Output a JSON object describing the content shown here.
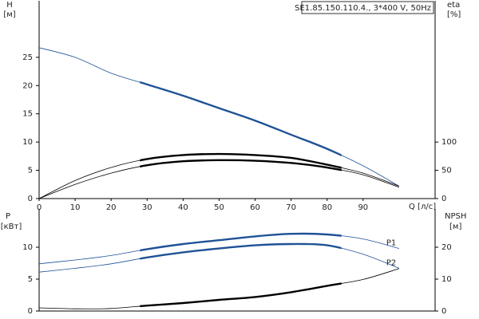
{
  "chart_data": [
    {
      "type": "line",
      "title": "SE1.85.150.110.4., 3*400 V, 50Hz",
      "ylabel": [
        "H",
        "[м]"
      ],
      "y2label": [
        "eta",
        "[%]"
      ],
      "xlabel": "Q [л/с]",
      "x": [
        0,
        10,
        20,
        30,
        40,
        50,
        60,
        70,
        80,
        90,
        100
      ],
      "xlim": [
        0,
        110
      ],
      "xticks": [
        0,
        10,
        20,
        30,
        40,
        50,
        60,
        70,
        80,
        90
      ],
      "ylim": [
        0,
        35
      ],
      "yticks": [
        0,
        5,
        10,
        15,
        20,
        25
      ],
      "y2lim": [
        0,
        350
      ],
      "y2ticks": [
        0,
        50,
        100
      ],
      "highlight_xlim": [
        28,
        84
      ],
      "series": [
        {
          "color": "#1f5296",
          "values": [
            26.7,
            25.0,
            22.2,
            20.2,
            18.2,
            16.0,
            13.8,
            11.3,
            8.8,
            5.8,
            2.2
          ]
        },
        {
          "color": "#000000",
          "axis": "y2",
          "values": [
            0,
            32,
            55,
            70,
            77,
            79,
            77,
            72,
            60,
            45,
            22
          ]
        },
        {
          "color": "#000000",
          "axis": "y2",
          "values": [
            0,
            25,
            45,
            59,
            66,
            68,
            67,
            63,
            55,
            42,
            20
          ]
        }
      ]
    },
    {
      "type": "line",
      "ylabel": [
        "P",
        "[кВт]"
      ],
      "y2label": [
        "NPSH",
        "[м]"
      ],
      "x": [
        0,
        10,
        20,
        30,
        40,
        50,
        60,
        70,
        80,
        90,
        100
      ],
      "xlim": [
        0,
        110
      ],
      "ylim": [
        0,
        16
      ],
      "yticks": [
        0,
        5,
        10
      ],
      "y2lim": [
        0,
        32
      ],
      "y2ticks": [
        0,
        10,
        20
      ],
      "highlight_xlim": [
        28,
        84
      ],
      "series": [
        {
          "name": "P1",
          "color": "#1f5296",
          "values": [
            7.4,
            8.0,
            8.7,
            9.7,
            10.5,
            11.1,
            11.7,
            12.1,
            12.0,
            11.3,
            9.8
          ]
        },
        {
          "name": "P2",
          "color": "#1f5296",
          "values": [
            6.1,
            6.7,
            7.4,
            8.4,
            9.2,
            9.8,
            10.3,
            10.5,
            10.3,
            8.9,
            6.7
          ]
        },
        {
          "color": "#000000",
          "axis": "y2",
          "values": [
            1.0,
            0.7,
            0.8,
            1.7,
            2.5,
            3.5,
            4.4,
            5.9,
            7.9,
            9.9,
            13.3
          ]
        }
      ]
    }
  ]
}
